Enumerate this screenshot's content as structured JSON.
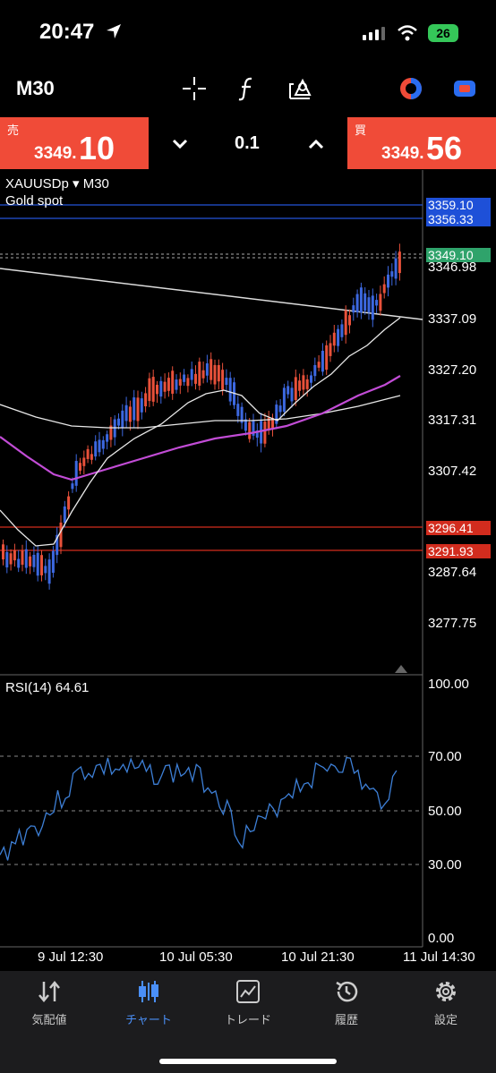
{
  "status": {
    "time": "20:47",
    "battery": "26"
  },
  "toolbar": {
    "symbol": "M30"
  },
  "trade": {
    "sell_label": "売",
    "sell_price_small": "3349.",
    "sell_price_big": "10",
    "buy_label": "買",
    "buy_price_small": "3349.",
    "buy_price_big": "56",
    "lot": "0.1"
  },
  "chart": {
    "symbol": "XAUUSDp ▾ M30",
    "description": "Gold spot",
    "price_axis": [
      "3346.98",
      "3337.09",
      "3327.20",
      "3317.31",
      "3307.42",
      "3287.64",
      "3277.75"
    ],
    "price_tags": [
      {
        "value": "3359.10",
        "color": "#1e50d8"
      },
      {
        "value": "3356.33",
        "color": "#1e50d8"
      },
      {
        "value": "3349.10",
        "color": "#2fa36b"
      },
      {
        "value": "3296.41",
        "color": "#d22c1e"
      },
      {
        "value": "3291.93",
        "color": "#d22c1e"
      }
    ],
    "rsi_label": "RSI(14) 64.61",
    "rsi_axis": [
      "100.00",
      "70.00",
      "50.00",
      "30.00",
      "0.00"
    ],
    "time_axis": [
      "9 Jul 12:30",
      "10 Jul 05:30",
      "10 Jul 21:30",
      "11 Jul 14:30"
    ]
  },
  "nav": {
    "items": [
      {
        "label": "気配値",
        "icon": "quotes-icon",
        "active": false
      },
      {
        "label": "チャート",
        "icon": "chart-icon",
        "active": true
      },
      {
        "label": "トレード",
        "icon": "trade-icon",
        "active": false
      },
      {
        "label": "履歴",
        "icon": "history-icon",
        "active": false
      },
      {
        "label": "設定",
        "icon": "settings-icon",
        "active": false
      }
    ]
  }
}
